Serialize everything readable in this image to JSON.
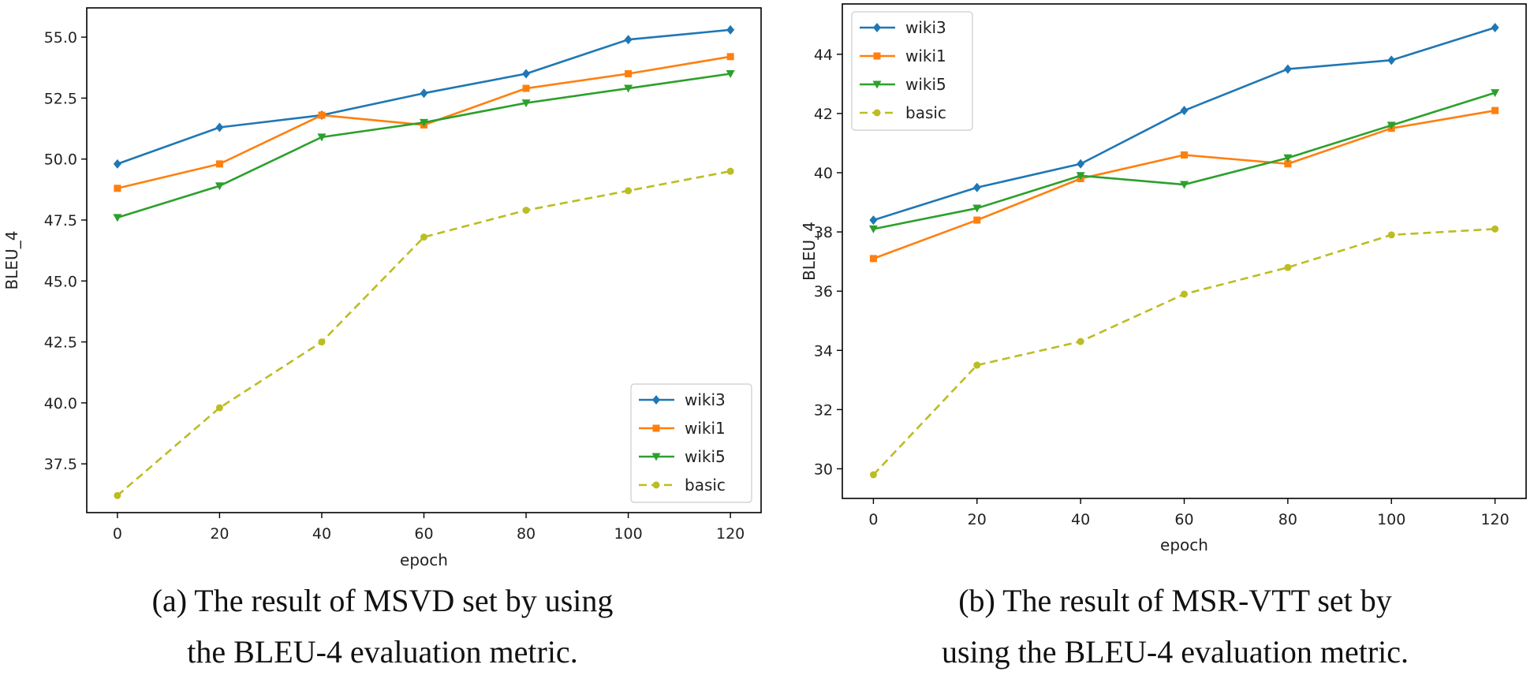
{
  "chart_data": [
    {
      "type": "line",
      "xlabel": "epoch",
      "ylabel": "BLEU_4",
      "x": [
        0,
        20,
        40,
        60,
        80,
        100,
        120
      ],
      "xlim": [
        -6,
        126
      ],
      "ylim": [
        35.5,
        56.2
      ],
      "xticks": [
        "0",
        "20",
        "40",
        "60",
        "80",
        "100",
        "120"
      ],
      "yticks": [
        "37.5",
        "40.0",
        "42.5",
        "45.0",
        "47.5",
        "50.0",
        "52.5",
        "55.0"
      ],
      "ytick_values": [
        37.5,
        40.0,
        42.5,
        45.0,
        47.5,
        50.0,
        52.5,
        55.0
      ],
      "legend_position": "lower-right",
      "series": [
        {
          "name": "wiki3",
          "values": [
            49.8,
            51.3,
            51.8,
            52.7,
            53.5,
            54.9,
            55.3
          ],
          "color": "#1f77b4",
          "marker": "diamond",
          "dashed": false
        },
        {
          "name": "wiki1",
          "values": [
            48.8,
            49.8,
            51.8,
            51.4,
            52.9,
            53.5,
            54.2
          ],
          "color": "#ff7f0e",
          "marker": "square",
          "dashed": false
        },
        {
          "name": "wiki5",
          "values": [
            47.6,
            48.9,
            50.9,
            51.5,
            52.3,
            52.9,
            53.5
          ],
          "color": "#2ca02c",
          "marker": "triangle-down",
          "dashed": false
        },
        {
          "name": "basic",
          "values": [
            36.2,
            39.8,
            42.5,
            46.8,
            47.9,
            48.7,
            49.5
          ],
          "color": "#bcbd22",
          "marker": "circle",
          "dashed": true
        }
      ],
      "caption": [
        "(a) The result of MSVD set by using",
        "the BLEU-4 evaluation metric."
      ]
    },
    {
      "type": "line",
      "xlabel": "epoch",
      "ylabel": "BLEU_4",
      "x": [
        0,
        20,
        40,
        60,
        80,
        100,
        120
      ],
      "xlim": [
        -6,
        126
      ],
      "ylim": [
        29.0,
        45.7
      ],
      "xticks": [
        "0",
        "20",
        "40",
        "60",
        "80",
        "100",
        "120"
      ],
      "yticks": [
        "30",
        "32",
        "34",
        "36",
        "38",
        "40",
        "42",
        "44"
      ],
      "ytick_values": [
        30,
        32,
        34,
        36,
        38,
        40,
        42,
        44
      ],
      "legend_position": "top-left",
      "series": [
        {
          "name": "wiki3",
          "values": [
            38.4,
            39.5,
            40.3,
            42.1,
            43.5,
            43.8,
            44.9
          ],
          "color": "#1f77b4",
          "marker": "diamond",
          "dashed": false
        },
        {
          "name": "wiki1",
          "values": [
            37.1,
            38.4,
            39.8,
            40.6,
            40.3,
            41.5,
            42.1
          ],
          "color": "#ff7f0e",
          "marker": "square",
          "dashed": false
        },
        {
          "name": "wiki5",
          "values": [
            38.1,
            38.8,
            39.9,
            39.6,
            40.5,
            41.6,
            42.7
          ],
          "color": "#2ca02c",
          "marker": "triangle-down",
          "dashed": false
        },
        {
          "name": "basic",
          "values": [
            29.8,
            33.5,
            34.3,
            35.9,
            36.8,
            37.9,
            38.1
          ],
          "color": "#bcbd22",
          "marker": "circle",
          "dashed": true
        }
      ],
      "caption": [
        "(b) The result of MSR-VTT set by",
        "using the BLEU-4 evaluation metric."
      ]
    }
  ]
}
